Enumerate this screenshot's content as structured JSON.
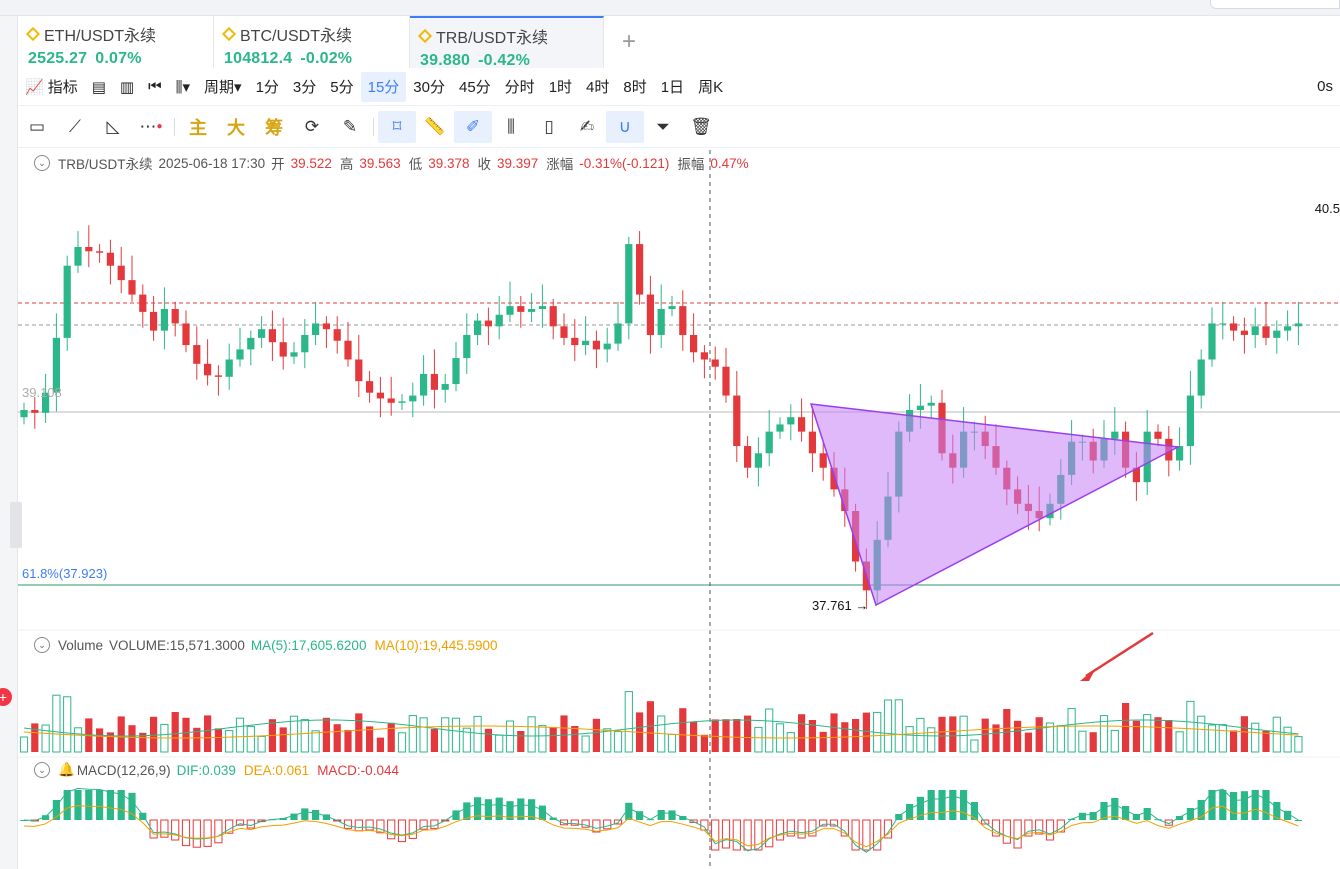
{
  "window": {
    "top_right_stub": ""
  },
  "tabs": [
    {
      "name": "ETH/USDT永续",
      "price": "2525.27",
      "change": "0.07%"
    },
    {
      "name": "BTC/USDT永续",
      "price": "104812.4",
      "change": "-0.02%"
    },
    {
      "name": "TRB/USDT永续",
      "price": "39.880",
      "change": "-0.42%"
    }
  ],
  "toolbar": {
    "indicator_label": "指标",
    "period_label": "周期",
    "intervals": [
      "1分",
      "3分",
      "5分",
      "15分",
      "30分",
      "45分",
      "分时",
      "1时",
      "4时",
      "8时",
      "1日",
      "周K"
    ],
    "selected_interval": "15分",
    "right_stub": "0s"
  },
  "drawing_tools": {
    "main": "主",
    "big": "大",
    "chip": "筹"
  },
  "ohlc": {
    "symbol": "TRB/USDT永续",
    "datetime": "2025-06-18 17:30",
    "open_label": "开",
    "open": "39.522",
    "high_label": "高",
    "high": "39.563",
    "low_label": "低",
    "low": "39.378",
    "close_label": "收",
    "close": "39.397",
    "change_label": "涨幅",
    "change": "-0.31%(-0.121)",
    "amplitude_label": "振幅",
    "amplitude": "0.47%"
  },
  "price_labels": {
    "top_right": "40.5",
    "left_level": "39.108",
    "fib_level": "61.8%(37.923)",
    "low_marker": "37.761"
  },
  "volume": {
    "label": "Volume",
    "value": "VOLUME:15,571.3000",
    "ma5": "MA(5):17,605.6200",
    "ma10": "MA(10):19,445.5900"
  },
  "macd": {
    "label": "MACD(12,26,9)",
    "dif": "DIF:0.039",
    "dea": "DEA:0.061",
    "macd": "MACD:-0.044"
  },
  "badge": "+",
  "colors": {
    "up": "#2bb789",
    "down": "#e4393c",
    "accent": "#3d7df5",
    "triangle": "#c580f5",
    "ma10": "#f0a000",
    "ma5": "#2bb789"
  },
  "chart_data": {
    "type": "candlestick",
    "close_prices": [
      39.1,
      39.08,
      39.22,
      39.6,
      40.1,
      40.23,
      40.2,
      40.19,
      40.1,
      40.0,
      39.9,
      39.78,
      39.65,
      39.8,
      39.7,
      39.55,
      39.42,
      39.34,
      39.33,
      39.45,
      39.52,
      39.6,
      39.66,
      39.57,
      39.47,
      39.5,
      39.62,
      39.7,
      39.66,
      39.58,
      39.45,
      39.3,
      39.22,
      39.18,
      39.15,
      39.16,
      39.2,
      39.35,
      39.24,
      39.28,
      39.46,
      39.62,
      39.72,
      39.68,
      39.76,
      39.82,
      39.78,
      39.8,
      39.82,
      39.68,
      39.6,
      39.55,
      39.58,
      39.52,
      39.56,
      39.7,
      40.25,
      39.9,
      39.62,
      39.8,
      39.82,
      39.62,
      39.5,
      39.45,
      39.4,
      39.2,
      38.85,
      38.7,
      38.8,
      38.95,
      39.0,
      39.05,
      38.95,
      38.8,
      38.7,
      38.55,
      38.4,
      38.05,
      37.85,
      38.2,
      38.5,
      38.95,
      39.1,
      39.13,
      39.15,
      38.8,
      38.7,
      38.95,
      38.95,
      38.85,
      38.7,
      38.55,
      38.45,
      38.4,
      38.35,
      38.45,
      38.65,
      38.88,
      38.88,
      38.75,
      38.9,
      38.95,
      38.7,
      38.6,
      38.95,
      38.9,
      38.75,
      38.85,
      39.2,
      39.45,
      39.7,
      39.7,
      39.65,
      39.62,
      39.68,
      39.6,
      39.65,
      39.68,
      39.7
    ],
    "ylim": [
      37.7,
      40.5
    ]
  }
}
